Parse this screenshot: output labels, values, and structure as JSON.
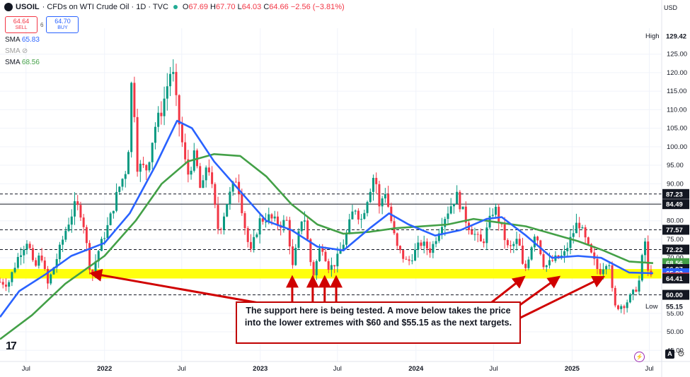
{
  "header": {
    "symbol": "USOIL",
    "description": "· CFDs on WTI Crude Oil · 1D · TVC",
    "ohlc": [
      {
        "key": "O",
        "value": "67.69"
      },
      {
        "key": "H",
        "value": "67.70"
      },
      {
        "key": "L",
        "value": "64.03"
      },
      {
        "key": "C",
        "value": "64.66"
      }
    ],
    "change": "−2.56 (−3.81%)"
  },
  "trade": {
    "sell_price": "64.64",
    "sell_label": "SELL",
    "spread": "6",
    "buy_price": "64.70",
    "buy_label": "BUY"
  },
  "indicators": [
    {
      "label": "SMA",
      "value": "65.83",
      "color": "#2962ff"
    },
    {
      "label": "SMA",
      "value": "",
      "color": "#9e9e9e",
      "icon": "eye-off-icon"
    },
    {
      "label": "SMA",
      "value": "68.56",
      "color": "#43a047"
    }
  ],
  "currency": "USD",
  "callout": {
    "text": "The support here is being tested. A move below takes the price into the lower extremes with $60 and $55.15 as the next targets."
  },
  "chart_data": {
    "type": "candlestick",
    "symbol": "USOIL",
    "timeframe": "1D",
    "x_ticks": [
      "Jul",
      "2022",
      "Jul",
      "2023",
      "Jul",
      "2024",
      "Jul",
      "2025",
      "Jul"
    ],
    "y_ticks": [
      45,
      50,
      55,
      60,
      65,
      70,
      75,
      80,
      85,
      90,
      95,
      100,
      105,
      110,
      115,
      120,
      125
    ],
    "ylim": [
      42,
      132
    ],
    "xlim": [
      "2021-05-01",
      "2025-07-30"
    ],
    "price_labels": [
      {
        "label": "High",
        "value": 129.42,
        "text": "129.42",
        "bg": "#ffffff",
        "fg": "#131722"
      },
      {
        "label": "",
        "value": 87.23,
        "text": "87.23",
        "bg": "#131722",
        "fg": "#ffffff"
      },
      {
        "label": "",
        "value": 84.49,
        "text": "84.49",
        "bg": "#131722",
        "fg": "#ffffff"
      },
      {
        "label": "",
        "value": 77.57,
        "text": "77.57",
        "bg": "#131722",
        "fg": "#ffffff"
      },
      {
        "label": "",
        "value": 72.22,
        "text": "72.22",
        "bg": "#131722",
        "fg": "#ffffff"
      },
      {
        "label": "",
        "value": 68.56,
        "text": "68.56",
        "bg": "#43a047",
        "fg": "#ffffff"
      },
      {
        "label": "",
        "value": 66.97,
        "text": "66.97",
        "bg": "#131722",
        "fg": "#ffffff"
      },
      {
        "label": "",
        "value": 65.83,
        "text": "65.83",
        "bg": "#2962ff",
        "fg": "#ffffff"
      },
      {
        "label": "",
        "value": 64.66,
        "text": "64.66",
        "bg": "#f23645",
        "fg": "#ffffff"
      },
      {
        "label": "",
        "value": 64.41,
        "text": "64.41",
        "bg": "#131722",
        "fg": "#ffffff"
      },
      {
        "label": "",
        "value": 60.0,
        "text": "60.00",
        "bg": "#131722",
        "fg": "#ffffff"
      },
      {
        "label": "Low",
        "value": 55.15,
        "text": "55.15",
        "bg": "#ffffff",
        "fg": "#131722"
      }
    ],
    "horizontal_lines": [
      {
        "value": 87.23,
        "style": "dashed"
      },
      {
        "value": 84.49,
        "style": "solid"
      },
      {
        "value": 77.57,
        "style": "dashed"
      },
      {
        "value": 72.22,
        "style": "dashed"
      },
      {
        "value": 60.0,
        "style": "dashed"
      }
    ],
    "support_zone": {
      "from": 64.41,
      "to": 66.97,
      "color": "#ffff00"
    },
    "price_path": [
      [
        "2021-05-01",
        63.5
      ],
      [
        "2021-05-20",
        63.0
      ],
      [
        "2021-06-15",
        71.0
      ],
      [
        "2021-07-05",
        75.0
      ],
      [
        "2021-07-20",
        66.5
      ],
      [
        "2021-08-05",
        71.5
      ],
      [
        "2021-08-20",
        62.5
      ],
      [
        "2021-09-10",
        69.5
      ],
      [
        "2021-10-05",
        78.5
      ],
      [
        "2021-10-25",
        84.5
      ],
      [
        "2021-11-10",
        81.5
      ],
      [
        "2021-11-26",
        68.5
      ],
      [
        "2021-12-02",
        65.0
      ],
      [
        "2021-12-15",
        71.0
      ],
      [
        "2022-01-10",
        79.0
      ],
      [
        "2022-02-01",
        88.0
      ],
      [
        "2022-02-24",
        95.0
      ],
      [
        "2022-03-08",
        124.0
      ],
      [
        "2022-03-16",
        95.0
      ],
      [
        "2022-04-11",
        94.0
      ],
      [
        "2022-04-28",
        105.0
      ],
      [
        "2022-05-15",
        110.0
      ],
      [
        "2022-06-08",
        122.0
      ],
      [
        "2022-06-20",
        110.0
      ],
      [
        "2022-07-14",
        92.0
      ],
      [
        "2022-08-01",
        98.0
      ],
      [
        "2022-08-16",
        86.5
      ],
      [
        "2022-08-30",
        97.0
      ],
      [
        "2022-09-26",
        76.5
      ],
      [
        "2022-10-15",
        85.0
      ],
      [
        "2022-11-07",
        92.0
      ],
      [
        "2022-11-28",
        77.0
      ],
      [
        "2022-12-09",
        71.0
      ],
      [
        "2022-12-30",
        80.0
      ],
      [
        "2023-01-20",
        81.0
      ],
      [
        "2023-02-15",
        79.0
      ],
      [
        "2023-03-06",
        80.0
      ],
      [
        "2023-03-17",
        66.8
      ],
      [
        "2023-04-12",
        83.0
      ],
      [
        "2023-05-04",
        64.8
      ],
      [
        "2023-05-24",
        74.0
      ],
      [
        "2023-06-12",
        67.0
      ],
      [
        "2023-06-28",
        69.0
      ],
      [
        "2023-07-20",
        75.5
      ],
      [
        "2023-08-10",
        84.0
      ],
      [
        "2023-08-25",
        80.0
      ],
      [
        "2023-09-27",
        93.5
      ],
      [
        "2023-10-06",
        83.0
      ],
      [
        "2023-10-20",
        88.5
      ],
      [
        "2023-11-16",
        73.0
      ],
      [
        "2023-12-12",
        68.5
      ],
      [
        "2024-01-12",
        74.0
      ],
      [
        "2024-02-05",
        72.0
      ],
      [
        "2024-03-01",
        79.5
      ],
      [
        "2024-04-05",
        87.0
      ],
      [
        "2024-05-01",
        79.0
      ],
      [
        "2024-06-04",
        73.5
      ],
      [
        "2024-07-03",
        84.0
      ],
      [
        "2024-08-05",
        72.0
      ],
      [
        "2024-08-28",
        75.0
      ],
      [
        "2024-09-10",
        65.5
      ],
      [
        "2024-10-07",
        77.5
      ],
      [
        "2024-10-28",
        67.5
      ],
      [
        "2024-11-20",
        69.5
      ],
      [
        "2024-12-12",
        70.5
      ],
      [
        "2025-01-15",
        80.0
      ],
      [
        "2025-02-10",
        72.0
      ],
      [
        "2025-03-05",
        66.0
      ],
      [
        "2025-03-28",
        70.0
      ],
      [
        "2025-04-09",
        56.5
      ],
      [
        "2025-05-05",
        57.5
      ],
      [
        "2025-05-28",
        61.0
      ],
      [
        "2025-06-10",
        64.5
      ],
      [
        "2025-06-20",
        77.5
      ],
      [
        "2025-06-24",
        65.0
      ],
      [
        "2025-07-03",
        67.0
      ],
      [
        "2025-07-10",
        64.66
      ]
    ],
    "sma_fast": {
      "value": 65.83,
      "color": "#2962ff",
      "points": [
        [
          "2021-05-01",
          54.0
        ],
        [
          "2021-06-15",
          61.0
        ],
        [
          "2021-08-15",
          65.5
        ],
        [
          "2021-10-15",
          70.5
        ],
        [
          "2022-01-01",
          74.0
        ],
        [
          "2022-03-01",
          82.0
        ],
        [
          "2022-05-01",
          95.0
        ],
        [
          "2022-06-20",
          107.0
        ],
        [
          "2022-07-25",
          105.0
        ],
        [
          "2022-09-15",
          96.0
        ],
        [
          "2022-11-15",
          88.0
        ],
        [
          "2023-01-15",
          80.0
        ],
        [
          "2023-03-15",
          77.5
        ],
        [
          "2023-05-15",
          73.0
        ],
        [
          "2023-07-15",
          72.0
        ],
        [
          "2023-09-15",
          78.0
        ],
        [
          "2023-10-30",
          82.0
        ],
        [
          "2023-12-15",
          79.0
        ],
        [
          "2024-02-15",
          76.0
        ],
        [
          "2024-04-15",
          77.5
        ],
        [
          "2024-06-15",
          80.5
        ],
        [
          "2024-07-20",
          81.0
        ],
        [
          "2024-09-15",
          76.0
        ],
        [
          "2024-11-15",
          70.0
        ],
        [
          "2025-01-15",
          70.5
        ],
        [
          "2025-03-10",
          70.0
        ],
        [
          "2025-05-15",
          66.0
        ],
        [
          "2025-07-10",
          65.83
        ]
      ]
    },
    "sma_slow": {
      "value": 68.56,
      "color": "#43a047",
      "points": [
        [
          "2021-05-01",
          48.0
        ],
        [
          "2021-07-15",
          54.5
        ],
        [
          "2021-10-01",
          63.0
        ],
        [
          "2022-01-01",
          70.5
        ],
        [
          "2022-03-15",
          80.0
        ],
        [
          "2022-05-15",
          90.0
        ],
        [
          "2022-07-15",
          96.0
        ],
        [
          "2022-09-15",
          98.0
        ],
        [
          "2022-11-15",
          97.5
        ],
        [
          "2023-01-15",
          92.0
        ],
        [
          "2023-03-15",
          84.5
        ],
        [
          "2023-05-15",
          79.0
        ],
        [
          "2023-07-15",
          76.5
        ],
        [
          "2023-09-15",
          77.0
        ],
        [
          "2023-11-15",
          78.0
        ],
        [
          "2024-01-15",
          78.5
        ],
        [
          "2024-03-15",
          79.0
        ],
        [
          "2024-05-15",
          80.5
        ],
        [
          "2024-07-15",
          79.5
        ],
        [
          "2024-09-15",
          78.5
        ],
        [
          "2024-11-15",
          76.5
        ],
        [
          "2025-01-15",
          74.5
        ],
        [
          "2025-03-15",
          72.0
        ],
        [
          "2025-05-15",
          69.0
        ],
        [
          "2025-07-10",
          68.56
        ]
      ]
    },
    "annotations": [
      {
        "type": "arrow",
        "from_date": "2023-03-28",
        "from_value": 56,
        "to_date": "2021-12-01",
        "to_value": 65.8
      },
      {
        "type": "arrow",
        "from_date": "2023-03-17",
        "from_value": 55.5,
        "to_date": "2023-03-17",
        "to_value": 64.8
      },
      {
        "type": "arrow",
        "from_date": "2023-05-04",
        "from_value": 55.5,
        "to_date": "2023-05-04",
        "to_value": 64.8
      },
      {
        "type": "arrow",
        "from_date": "2023-06-01",
        "from_value": 55.5,
        "to_date": "2023-06-01",
        "to_value": 64.8
      },
      {
        "type": "arrow",
        "from_date": "2023-06-28",
        "from_value": 55.5,
        "to_date": "2023-06-28",
        "to_value": 64.8
      },
      {
        "type": "arrow",
        "from_date": "2024-06-10",
        "from_value": 56.5,
        "to_date": "2024-09-10",
        "to_value": 64.8
      },
      {
        "type": "arrow",
        "from_date": "2024-07-05",
        "from_value": 52.5,
        "to_date": "2024-12-01",
        "to_value": 64.8
      },
      {
        "type": "arrow",
        "from_date": "2024-07-05",
        "from_value": 50.5,
        "to_date": "2025-03-15",
        "to_value": 64.8
      }
    ]
  }
}
